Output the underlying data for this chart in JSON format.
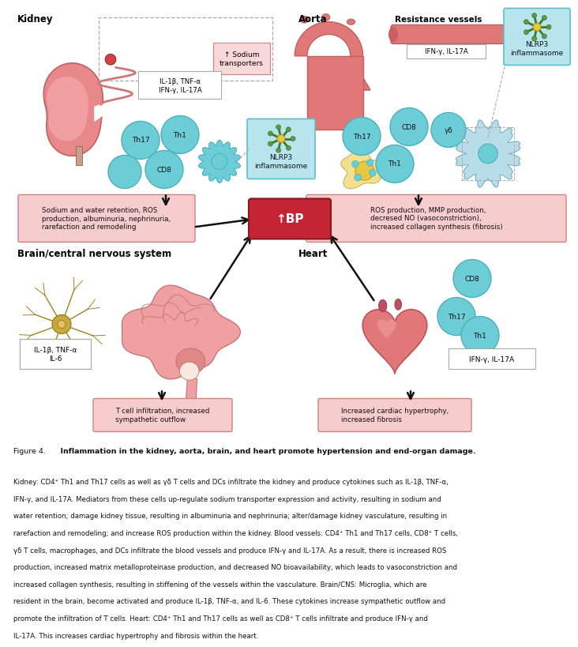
{
  "bg_color": "#ffffff",
  "cell_color": "#6dcdd6",
  "cell_color2": "#7dd8e0",
  "cell_outline": "#4ab0ba",
  "box_fill": "#f7cccc",
  "box_outline": "#d08080",
  "nlrp3_box_fill": "#b8e4ee",
  "nlrp3_box_outline": "#5bbfce",
  "bp_box_fill": "#c42535",
  "bp_box_edge": "#8b1520",
  "kidney_color": "#e8888a",
  "kidney_inner": "#f0a0a0",
  "heart_color": "#e07878",
  "heart_dark": "#c05060",
  "brain_color": "#f0a0a0",
  "brain_inner": "#e08888",
  "aorta_color": "#e07878",
  "vessel_color": "#e07878",
  "neuron_color": "#c8a840",
  "neuron_outline": "#a08020",
  "macro_color": "#f0e080",
  "macro_outline": "#c0b050",
  "arrow_color": "#111111",
  "text_color": "#111111",
  "dashed_ec": "#999999",
  "solid_box_ec": "#aaaaaa",
  "fig4_label": "Figure 4.",
  "fig4_bold": "  Inflammation in the kidney, aorta, brain, and heart promote hypertension and end-organ damage.",
  "fig4_rest": " Kidney: CD4⁺ Th1 and Th17 cells as well as γδ T cells and DCs infiltrate the kidney and produce cytokines such as IL-1β, TNF-α, IFN-γ, and IL-17A. Mediators from these cells up-regulate sodium transporter expression and activity, resulting in sodium and water retention; damage kidney tissue, resulting in albuminuria and nephrinuria; alter/damage kidney vasculature, resulting in rarefaction and remodeling; and increase ROS production within the kidney. Blood vessels: CD4⁺ Th1 and Th17 cells, CD8⁺ T cells, γδ T cells, macrophages, and DCs infiltrate the blood vessels and produce IFN-γ and IL-17A. As a result, there is increased ROS production, increased matrix metalloproteinase production, and decreased NO bioavailability, which leads to vasoconstriction and increased collagen synthesis, resulting in stiffening of the vessels within the vasculature. Brain/CNS: Microglia, which are resident in the brain, become activated and produce IL-1β, TNF-α, and IL-6. These cytokines increase sympathetic outflow and promote the infiltration of T cells. Heart: CD4⁺ Th1 and Th17 cells as well as CD8⁺ T cells infiltrate and produce IFN-γ and IL-17A. This increases cardiac hypertrophy and fibrosis within the heart."
}
